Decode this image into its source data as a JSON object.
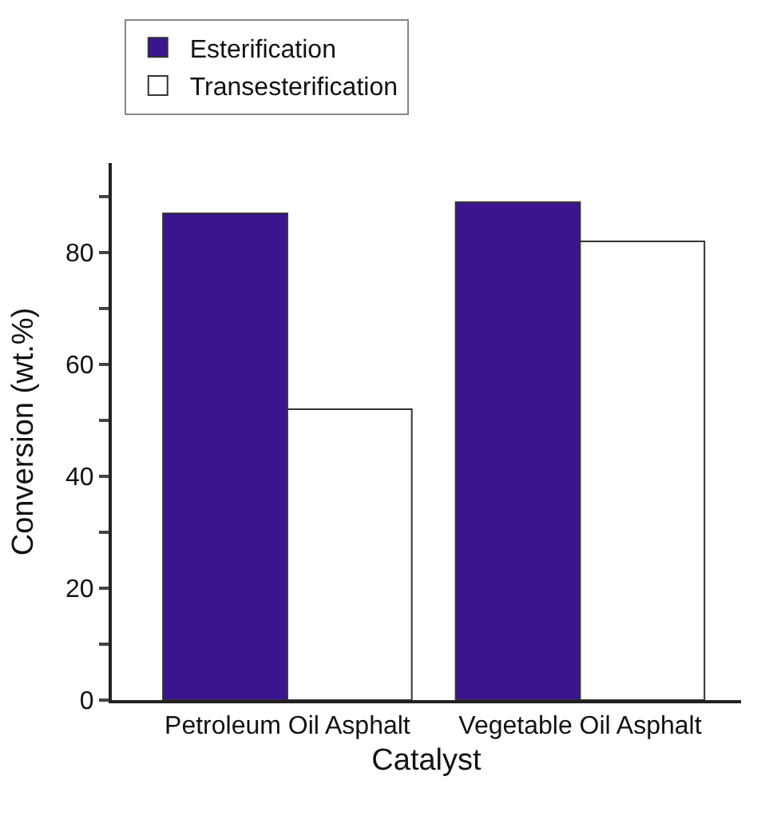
{
  "chart_data": {
    "type": "bar",
    "xlabel": "Catalyst",
    "ylabel": "Conversion (wt.%)",
    "categories": [
      "Petroleum Oil Asphalt",
      "Vegetable Oil Asphalt"
    ],
    "series": [
      {
        "name": "Esterification",
        "color": "#3b1590",
        "values": [
          87,
          89
        ]
      },
      {
        "name": "Transesterification",
        "color": "#ffffff",
        "values": [
          52,
          82
        ]
      }
    ],
    "ylim": [
      0,
      96
    ],
    "yticks": [
      0,
      {
        "value": 10,
        "label": null
      },
      20,
      {
        "value": 30,
        "label": null
      },
      40,
      {
        "value": 50,
        "label": null
      },
      60,
      {
        "value": 70,
        "label": null
      },
      80,
      {
        "value": 90,
        "label": null
      }
    ],
    "legend": "top left"
  }
}
